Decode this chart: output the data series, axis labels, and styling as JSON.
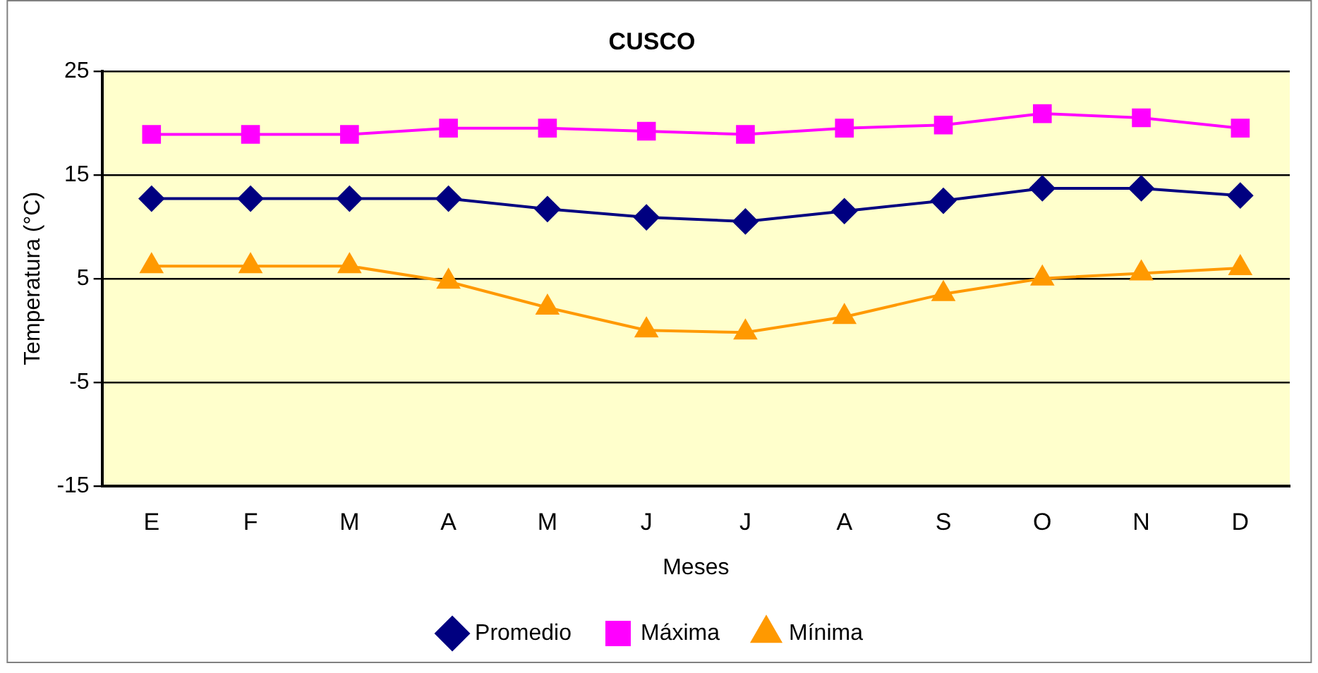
{
  "chart_data": {
    "type": "line",
    "title": "CUSCO",
    "xlabel": "Meses",
    "ylabel": "Temperatura (°C)",
    "categories": [
      "E",
      "F",
      "M",
      "A",
      "M",
      "J",
      "J",
      "A",
      "S",
      "O",
      "N",
      "D"
    ],
    "series": [
      {
        "name": "Promedio",
        "color": "#000080",
        "marker": "diamond",
        "values": [
          12.7,
          12.7,
          12.7,
          12.7,
          11.7,
          10.9,
          10.5,
          11.5,
          12.5,
          13.7,
          13.7,
          13.0
        ]
      },
      {
        "name": "Máxima",
        "color": "#ff00ff",
        "marker": "square",
        "values": [
          18.9,
          18.9,
          18.9,
          19.5,
          19.5,
          19.2,
          18.9,
          19.5,
          19.8,
          20.9,
          20.5,
          19.5
        ]
      },
      {
        "name": "Mínima",
        "color": "#ff9900",
        "marker": "triangle",
        "values": [
          6.2,
          6.2,
          6.2,
          4.7,
          2.2,
          0.0,
          -0.2,
          1.3,
          3.5,
          5.0,
          5.5,
          6.0
        ]
      }
    ],
    "ylim": [
      -15,
      25
    ],
    "yticks": [
      -15,
      -5,
      5,
      15,
      25
    ],
    "grid": "y",
    "legend": "bottom",
    "line_style": "solid"
  }
}
